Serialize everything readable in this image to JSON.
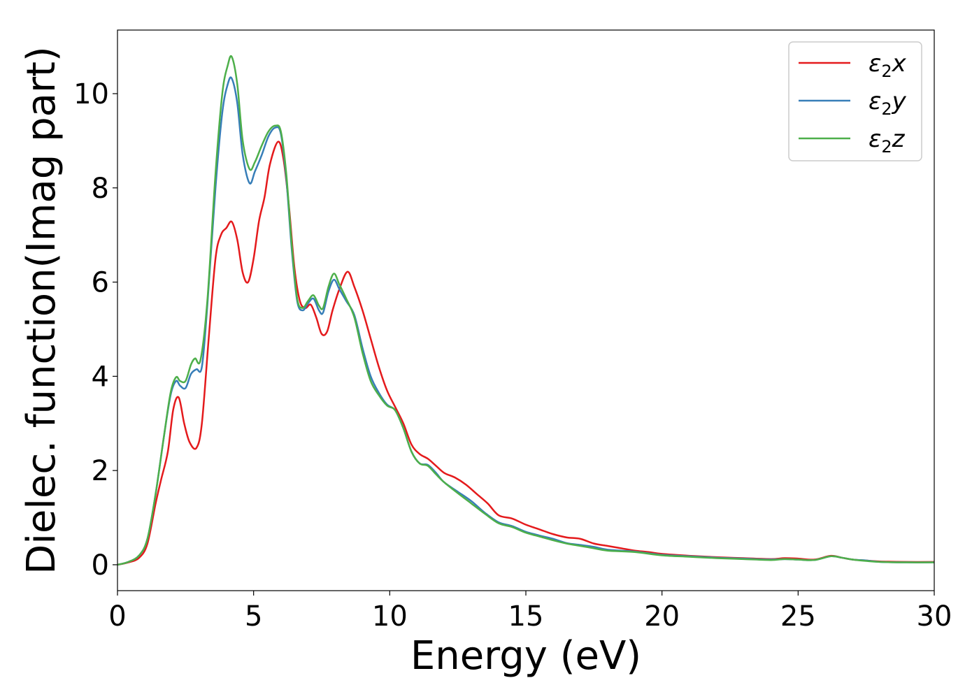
{
  "chart_data": {
    "type": "line",
    "title": "",
    "xlabel": "Energy (eV)",
    "ylabel": "Dielec. function(Imag part)",
    "xlim": [
      0,
      30
    ],
    "ylim": [
      -0.55,
      11.35
    ],
    "xticks": [
      0,
      5,
      10,
      15,
      20,
      25,
      30
    ],
    "yticks": [
      0,
      2,
      4,
      6,
      8,
      10
    ],
    "grid": false,
    "legend_position": "top-right",
    "series": [
      {
        "name": "ε₂x",
        "legend_base": "ε",
        "legend_sub": "2",
        "legend_suffix": "x",
        "color": "#e41a1c",
        "points": [
          [
            0,
            0
          ],
          [
            0.4,
            0.05
          ],
          [
            0.8,
            0.15
          ],
          [
            1.1,
            0.45
          ],
          [
            1.4,
            1.3
          ],
          [
            1.6,
            1.8
          ],
          [
            1.85,
            2.4
          ],
          [
            2.05,
            3.3
          ],
          [
            2.25,
            3.55
          ],
          [
            2.45,
            3.0
          ],
          [
            2.65,
            2.6
          ],
          [
            2.9,
            2.48
          ],
          [
            3.1,
            3.0
          ],
          [
            3.35,
            4.8
          ],
          [
            3.6,
            6.5
          ],
          [
            3.8,
            7.0
          ],
          [
            4.0,
            7.15
          ],
          [
            4.2,
            7.28
          ],
          [
            4.4,
            6.9
          ],
          [
            4.6,
            6.2
          ],
          [
            4.8,
            6.0
          ],
          [
            5.0,
            6.5
          ],
          [
            5.2,
            7.3
          ],
          [
            5.4,
            7.8
          ],
          [
            5.6,
            8.5
          ],
          [
            5.9,
            8.98
          ],
          [
            6.1,
            8.6
          ],
          [
            6.3,
            7.6
          ],
          [
            6.5,
            6.3
          ],
          [
            6.7,
            5.6
          ],
          [
            6.9,
            5.45
          ],
          [
            7.1,
            5.52
          ],
          [
            7.3,
            5.25
          ],
          [
            7.5,
            4.9
          ],
          [
            7.7,
            4.95
          ],
          [
            7.9,
            5.4
          ],
          [
            8.15,
            5.85
          ],
          [
            8.45,
            6.22
          ],
          [
            8.7,
            5.9
          ],
          [
            9.0,
            5.4
          ],
          [
            9.3,
            4.8
          ],
          [
            9.6,
            4.2
          ],
          [
            9.9,
            3.7
          ],
          [
            10.2,
            3.35
          ],
          [
            10.5,
            3.0
          ],
          [
            10.8,
            2.55
          ],
          [
            11.1,
            2.35
          ],
          [
            11.4,
            2.25
          ],
          [
            11.7,
            2.1
          ],
          [
            12.0,
            1.95
          ],
          [
            12.4,
            1.85
          ],
          [
            12.8,
            1.7
          ],
          [
            13.2,
            1.5
          ],
          [
            13.6,
            1.3
          ],
          [
            14.0,
            1.05
          ],
          [
            14.5,
            0.98
          ],
          [
            15.0,
            0.85
          ],
          [
            15.5,
            0.75
          ],
          [
            16.0,
            0.65
          ],
          [
            16.5,
            0.58
          ],
          [
            17.0,
            0.55
          ],
          [
            17.5,
            0.45
          ],
          [
            18.0,
            0.4
          ],
          [
            18.5,
            0.35
          ],
          [
            19.0,
            0.3
          ],
          [
            19.5,
            0.27
          ],
          [
            20.0,
            0.23
          ],
          [
            21.0,
            0.19
          ],
          [
            22.0,
            0.16
          ],
          [
            23.0,
            0.14
          ],
          [
            24.0,
            0.12
          ],
          [
            24.5,
            0.14
          ],
          [
            25.0,
            0.13
          ],
          [
            25.6,
            0.11
          ],
          [
            26.2,
            0.19
          ],
          [
            26.6,
            0.15
          ],
          [
            27.0,
            0.11
          ],
          [
            27.5,
            0.09
          ],
          [
            28.0,
            0.07
          ],
          [
            29.0,
            0.06
          ],
          [
            30.0,
            0.06
          ]
        ]
      },
      {
        "name": "ε₂y",
        "legend_base": "ε",
        "legend_sub": "2",
        "legend_suffix": "y",
        "color": "#377eb8",
        "points": [
          [
            0,
            0
          ],
          [
            0.4,
            0.06
          ],
          [
            0.8,
            0.2
          ],
          [
            1.1,
            0.55
          ],
          [
            1.4,
            1.5
          ],
          [
            1.7,
            2.7
          ],
          [
            1.95,
            3.6
          ],
          [
            2.15,
            3.9
          ],
          [
            2.3,
            3.8
          ],
          [
            2.5,
            3.75
          ],
          [
            2.7,
            4.05
          ],
          [
            2.9,
            4.15
          ],
          [
            3.1,
            4.2
          ],
          [
            3.3,
            5.5
          ],
          [
            3.6,
            8.0
          ],
          [
            3.85,
            9.6
          ],
          [
            4.05,
            10.2
          ],
          [
            4.2,
            10.32
          ],
          [
            4.4,
            9.8
          ],
          [
            4.6,
            8.7
          ],
          [
            4.85,
            8.1
          ],
          [
            5.05,
            8.35
          ],
          [
            5.3,
            8.7
          ],
          [
            5.55,
            9.1
          ],
          [
            5.8,
            9.28
          ],
          [
            6.0,
            9.15
          ],
          [
            6.2,
            8.2
          ],
          [
            6.4,
            6.7
          ],
          [
            6.6,
            5.6
          ],
          [
            6.8,
            5.4
          ],
          [
            7.0,
            5.55
          ],
          [
            7.2,
            5.65
          ],
          [
            7.4,
            5.4
          ],
          [
            7.55,
            5.35
          ],
          [
            7.75,
            5.8
          ],
          [
            7.95,
            6.05
          ],
          [
            8.15,
            5.85
          ],
          [
            8.4,
            5.6
          ],
          [
            8.7,
            5.3
          ],
          [
            9.0,
            4.6
          ],
          [
            9.3,
            4.0
          ],
          [
            9.6,
            3.65
          ],
          [
            9.9,
            3.4
          ],
          [
            10.2,
            3.28
          ],
          [
            10.5,
            2.9
          ],
          [
            10.8,
            2.4
          ],
          [
            11.1,
            2.15
          ],
          [
            11.4,
            2.12
          ],
          [
            11.7,
            1.95
          ],
          [
            12.0,
            1.75
          ],
          [
            12.5,
            1.55
          ],
          [
            13.0,
            1.35
          ],
          [
            13.5,
            1.1
          ],
          [
            14.0,
            0.9
          ],
          [
            14.5,
            0.82
          ],
          [
            15.0,
            0.7
          ],
          [
            15.5,
            0.62
          ],
          [
            16.0,
            0.55
          ],
          [
            16.5,
            0.46
          ],
          [
            17.0,
            0.42
          ],
          [
            17.5,
            0.38
          ],
          [
            18.0,
            0.32
          ],
          [
            19.0,
            0.28
          ],
          [
            20.0,
            0.21
          ],
          [
            21.0,
            0.18
          ],
          [
            22.0,
            0.15
          ],
          [
            23.0,
            0.13
          ],
          [
            24.0,
            0.11
          ],
          [
            24.5,
            0.12
          ],
          [
            25.0,
            0.11
          ],
          [
            25.6,
            0.1
          ],
          [
            26.2,
            0.18
          ],
          [
            26.6,
            0.15
          ],
          [
            27.0,
            0.11
          ],
          [
            27.5,
            0.09
          ],
          [
            28.0,
            0.06
          ],
          [
            29.0,
            0.05
          ],
          [
            30.0,
            0.05
          ]
        ]
      },
      {
        "name": "ε₂z",
        "legend_base": "ε",
        "legend_sub": "2",
        "legend_suffix": "z",
        "color": "#4daf4a",
        "points": [
          [
            0,
            0
          ],
          [
            0.4,
            0.06
          ],
          [
            0.8,
            0.2
          ],
          [
            1.1,
            0.55
          ],
          [
            1.4,
            1.5
          ],
          [
            1.7,
            2.7
          ],
          [
            1.95,
            3.65
          ],
          [
            2.15,
            3.98
          ],
          [
            2.3,
            3.9
          ],
          [
            2.5,
            3.9
          ],
          [
            2.7,
            4.25
          ],
          [
            2.85,
            4.38
          ],
          [
            3.05,
            4.35
          ],
          [
            3.3,
            5.6
          ],
          [
            3.6,
            8.3
          ],
          [
            3.85,
            10.0
          ],
          [
            4.05,
            10.6
          ],
          [
            4.2,
            10.78
          ],
          [
            4.4,
            10.2
          ],
          [
            4.6,
            9.0
          ],
          [
            4.85,
            8.4
          ],
          [
            5.05,
            8.55
          ],
          [
            5.3,
            8.9
          ],
          [
            5.55,
            9.2
          ],
          [
            5.8,
            9.32
          ],
          [
            6.0,
            9.2
          ],
          [
            6.2,
            8.3
          ],
          [
            6.4,
            6.8
          ],
          [
            6.6,
            5.65
          ],
          [
            6.8,
            5.45
          ],
          [
            7.0,
            5.6
          ],
          [
            7.2,
            5.72
          ],
          [
            7.4,
            5.5
          ],
          [
            7.55,
            5.45
          ],
          [
            7.75,
            5.9
          ],
          [
            7.95,
            6.18
          ],
          [
            8.15,
            5.95
          ],
          [
            8.4,
            5.65
          ],
          [
            8.7,
            5.25
          ],
          [
            9.0,
            4.5
          ],
          [
            9.3,
            3.9
          ],
          [
            9.6,
            3.6
          ],
          [
            9.9,
            3.38
          ],
          [
            10.2,
            3.28
          ],
          [
            10.5,
            2.9
          ],
          [
            10.8,
            2.4
          ],
          [
            11.1,
            2.15
          ],
          [
            11.4,
            2.1
          ],
          [
            11.7,
            1.92
          ],
          [
            12.0,
            1.75
          ],
          [
            12.5,
            1.52
          ],
          [
            13.0,
            1.3
          ],
          [
            13.5,
            1.08
          ],
          [
            14.0,
            0.88
          ],
          [
            14.5,
            0.8
          ],
          [
            15.0,
            0.68
          ],
          [
            15.5,
            0.6
          ],
          [
            16.0,
            0.52
          ],
          [
            16.5,
            0.45
          ],
          [
            17.0,
            0.4
          ],
          [
            17.5,
            0.35
          ],
          [
            18.0,
            0.3
          ],
          [
            19.0,
            0.27
          ],
          [
            20.0,
            0.2
          ],
          [
            21.0,
            0.17
          ],
          [
            22.0,
            0.14
          ],
          [
            23.0,
            0.12
          ],
          [
            24.0,
            0.1
          ],
          [
            24.5,
            0.12
          ],
          [
            25.0,
            0.11
          ],
          [
            25.6,
            0.1
          ],
          [
            26.2,
            0.18
          ],
          [
            26.6,
            0.15
          ],
          [
            27.0,
            0.11
          ],
          [
            27.5,
            0.08
          ],
          [
            28.0,
            0.06
          ],
          [
            29.0,
            0.05
          ],
          [
            30.0,
            0.05
          ]
        ]
      }
    ]
  }
}
